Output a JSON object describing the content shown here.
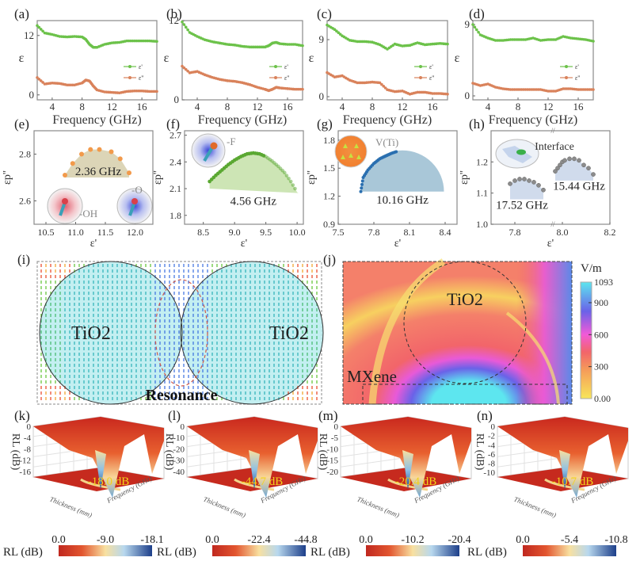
{
  "figure": {
    "panel_labels": [
      "(a)",
      "(b)",
      "(c)",
      "(d)",
      "(e)",
      "(f)",
      "(g)",
      "(h)",
      "(i)",
      "(j)",
      "(k)",
      "(l)",
      "(m)",
      "(n)"
    ]
  },
  "chart_data": [
    {
      "id": "a",
      "type": "line",
      "panel": "(a)",
      "xlabel": "Frequency (GHz)",
      "ylabel": "ε",
      "xlim": [
        2,
        18
      ],
      "ylim": [
        -1,
        15
      ],
      "xticks": [
        4,
        8,
        12,
        16
      ],
      "yticks": [
        0,
        12
      ],
      "legend": {
        "position": "right",
        "entries": [
          "ε'",
          "ε''"
        ]
      },
      "x": [
        2,
        3,
        4,
        5,
        6,
        7,
        8,
        8.5,
        9,
        9.5,
        10,
        11,
        12,
        13,
        14,
        15,
        16,
        17,
        18
      ],
      "series": [
        {
          "name": "ε'",
          "color": "#6cc24a",
          "values": [
            14,
            12.5,
            12.2,
            11.8,
            11.7,
            11.8,
            11.7,
            11.2,
            10.2,
            9.6,
            9.6,
            10.2,
            10.5,
            10.6,
            10.9,
            10.9,
            10.9,
            10.9,
            10.8
          ]
        },
        {
          "name": "ε''",
          "color": "#d9825b",
          "values": [
            3.5,
            2.2,
            2.4,
            2.3,
            2.0,
            2.0,
            2.4,
            3.0,
            2.8,
            1.8,
            1.0,
            0.6,
            0.5,
            0.4,
            0.7,
            0.8,
            0.8,
            0.7,
            0.7
          ]
        }
      ]
    },
    {
      "id": "b",
      "type": "line",
      "panel": "(b)",
      "xlabel": "Frequency (GHz)",
      "ylabel": "ε",
      "xlim": [
        2,
        18
      ],
      "ylim": [
        0,
        12
      ],
      "xticks": [
        4,
        8,
        12,
        16
      ],
      "yticks": [
        0,
        12
      ],
      "legend": {
        "position": "right",
        "entries": [
          "ε'",
          "ε''"
        ]
      },
      "x": [
        2,
        3,
        4,
        5,
        6,
        7,
        8,
        9,
        10,
        11,
        12,
        13,
        13.5,
        14,
        14.5,
        15,
        16,
        17,
        18
      ],
      "series": [
        {
          "name": "ε'",
          "color": "#6cc24a",
          "values": [
            11.8,
            10.2,
            9.6,
            9.1,
            8.8,
            8.6,
            8.4,
            8.3,
            8.1,
            8.0,
            8.0,
            8.0,
            8.2,
            8.6,
            8.7,
            8.5,
            8.4,
            8.4,
            8.2
          ]
        },
        {
          "name": "ε''",
          "color": "#d9825b",
          "values": [
            5.1,
            4.1,
            4.3,
            3.8,
            3.4,
            3.1,
            2.9,
            2.8,
            2.6,
            2.3,
            1.9,
            1.6,
            1.4,
            1.6,
            1.9,
            1.8,
            1.7,
            1.6,
            1.6
          ]
        }
      ]
    },
    {
      "id": "c",
      "type": "line",
      "panel": "(c)",
      "xlabel": "Frequency (GHz)",
      "ylabel": "ε",
      "xlim": [
        2,
        18
      ],
      "ylim": [
        -0.5,
        12
      ],
      "xticks": [
        4,
        8,
        12,
        16
      ],
      "yticks": [
        0,
        9
      ],
      "legend": {
        "position": "right",
        "entries": [
          "ε'",
          "ε''"
        ]
      },
      "x": [
        2,
        3,
        4,
        5,
        6,
        7,
        8,
        9,
        10,
        11,
        12,
        13,
        14,
        15,
        16,
        17,
        18
      ],
      "series": [
        {
          "name": "ε'",
          "color": "#6cc24a",
          "values": [
            11.3,
            10.6,
            9.6,
            8.9,
            8.7,
            8.7,
            8.6,
            8.2,
            7.5,
            8.3,
            8.0,
            8.1,
            8.5,
            8.2,
            8.3,
            8.4,
            8.3
          ]
        },
        {
          "name": "ε''",
          "color": "#d9825b",
          "values": [
            3.8,
            3.1,
            3.3,
            2.6,
            2.2,
            2.2,
            2.3,
            2.2,
            1.1,
            0.8,
            0.9,
            0.4,
            0.7,
            0.7,
            0.5,
            0.5,
            0.4
          ]
        }
      ]
    },
    {
      "id": "d",
      "type": "line",
      "panel": "(d)",
      "xlabel": "Frequency (GHz)",
      "ylabel": "ε",
      "xlim": [
        2,
        18
      ],
      "ylim": [
        -0.5,
        9.5
      ],
      "xticks": [
        4,
        8,
        12,
        16
      ],
      "yticks": [
        0,
        9
      ],
      "legend": {
        "position": "right",
        "entries": [
          "ε'",
          "ε''"
        ]
      },
      "x": [
        2,
        3,
        4,
        5,
        6,
        7,
        8,
        9,
        10,
        11,
        12,
        13,
        14,
        15,
        16,
        17,
        18
      ],
      "series": [
        {
          "name": "ε'",
          "color": "#6cc24a",
          "values": [
            9.0,
            7.7,
            7.3,
            7.0,
            7.0,
            7.1,
            7.1,
            7.1,
            7.3,
            7.0,
            7.1,
            7.1,
            7.5,
            7.3,
            7.2,
            7.1,
            6.9
          ]
        },
        {
          "name": "ε''",
          "color": "#d9825b",
          "values": [
            1.6,
            1.3,
            1.5,
            1.1,
            0.9,
            0.8,
            0.8,
            0.8,
            0.8,
            0.8,
            0.6,
            0.6,
            0.9,
            0.9,
            0.8,
            0.8,
            0.8
          ]
        }
      ]
    },
    {
      "id": "e",
      "type": "scatter",
      "panel": "(e)",
      "xlabel": "ε'",
      "ylabel": "εp''",
      "xlim": [
        10.3,
        12.3
      ],
      "ylim": [
        2.5,
        2.9
      ],
      "xticks": [
        10.5,
        11.0,
        11.5,
        12.0
      ],
      "yticks": [
        2.6,
        2.8
      ],
      "annotation": "2.36 GHz",
      "fill_color": "#d6ceaa",
      "point_color": "#f29a4b",
      "x": [
        10.82,
        10.95,
        11.1,
        11.25,
        11.4,
        11.6,
        11.75,
        11.9
      ],
      "y": [
        2.71,
        2.76,
        2.8,
        2.82,
        2.82,
        2.81,
        2.78,
        2.72
      ],
      "insets": [
        {
          "label": "-OH"
        },
        {
          "label": "-O"
        }
      ]
    },
    {
      "id": "f",
      "type": "scatter",
      "panel": "(f)",
      "xlabel": "ε'",
      "ylabel": "εp''",
      "xlim": [
        8.2,
        10.1
      ],
      "ylim": [
        1.7,
        2.75
      ],
      "xticks": [
        8.5,
        9.0,
        9.5,
        10.0
      ],
      "yticks": [
        1.8,
        2.1,
        2.4,
        2.7
      ],
      "annotation": "4.56 GHz",
      "fill_color": "#c8e2ad",
      "point_color": "#5aa832",
      "x": [
        8.6,
        8.7,
        8.8,
        8.9,
        9.0,
        9.1,
        9.2,
        9.3,
        9.4,
        9.5,
        9.6,
        9.7,
        9.8,
        9.9,
        10.0
      ],
      "y": [
        2.18,
        2.25,
        2.31,
        2.37,
        2.42,
        2.46,
        2.49,
        2.5,
        2.49,
        2.46,
        2.41,
        2.35,
        2.28,
        2.18,
        2.06
      ],
      "insets": [
        {
          "label": "-F"
        }
      ]
    },
    {
      "id": "g",
      "type": "scatter",
      "panel": "(g)",
      "xlabel": "ε'",
      "ylabel": "εp''",
      "xlim": [
        7.5,
        8.5
      ],
      "ylim": [
        0.9,
        1.9
      ],
      "xticks": [
        7.5,
        7.8,
        8.1,
        8.4
      ],
      "yticks": [
        0.9,
        1.2,
        1.5,
        1.8
      ],
      "annotation": "10.16 GHz",
      "fill_color": "#a9c7d8",
      "point_color": "#2a6fb0",
      "x": [
        7.69,
        7.71,
        7.75,
        7.8,
        7.85,
        7.9,
        7.95,
        8.0
      ],
      "y": [
        1.25,
        1.4,
        1.48,
        1.55,
        1.6,
        1.63,
        1.66,
        1.68
      ],
      "insets": [
        {
          "label": "V(Ti)"
        }
      ]
    },
    {
      "id": "h",
      "type": "scatter",
      "panel": "(h)",
      "xlabel": "ε'",
      "ylabel": "εp''",
      "xlim": [
        7.7,
        8.2
      ],
      "ylim": [
        1.0,
        1.3
      ],
      "xticks": [
        7.8,
        8.0,
        8.2
      ],
      "yticks": [
        1.0,
        1.1,
        1.2
      ],
      "axis_break": true,
      "inset_label": "Interface",
      "fill_color": "#cbd7ea",
      "point_color": "#9a9a9a",
      "series": [
        {
          "name": "17.52 GHz",
          "x": [
            7.78,
            7.8,
            7.82,
            7.84,
            7.86,
            7.88,
            7.9,
            7.92
          ],
          "y": [
            1.13,
            1.14,
            1.145,
            1.145,
            1.14,
            1.135,
            1.125,
            1.11
          ]
        },
        {
          "name": "15.44 GHz",
          "x": [
            7.97,
            7.98,
            7.99,
            8.0,
            8.01,
            8.03,
            8.05,
            8.07,
            8.09,
            8.11,
            8.13
          ],
          "y": [
            1.17,
            1.18,
            1.19,
            1.2,
            1.205,
            1.21,
            1.21,
            1.205,
            1.19,
            1.18,
            1.16
          ]
        }
      ]
    },
    {
      "id": "i",
      "type": "heatmap",
      "panel": "(i)",
      "title": "",
      "labels": [
        "TiO2",
        "TiO2",
        "Resonance"
      ],
      "description": "Electric field vector distribution between two TiO2 spheres"
    },
    {
      "id": "j",
      "type": "heatmap",
      "panel": "(j)",
      "labels": [
        "TiO2",
        "MXene"
      ],
      "colorbar": {
        "unit": "V/m",
        "min": 0.0,
        "max": 1093,
        "ticks": [
          "1093",
          "900",
          "600",
          "300",
          "0.00"
        ]
      }
    },
    {
      "id": "k",
      "type": "surface3d",
      "panel": "(k)",
      "zlabel": "RL (dB)",
      "xlabel": "Thickness (mm)",
      "ylabel": "Frequency (GHz)",
      "zticks": [
        0,
        -4,
        -8,
        -12,
        -16
      ],
      "annotation": "-18.0 dB",
      "colorbar": {
        "label": "RL (dB)",
        "ticks": [
          "0.0",
          "-9.0",
          "-18.1"
        ],
        "min": 0.0,
        "max": -18.1
      }
    },
    {
      "id": "l",
      "type": "surface3d",
      "panel": "(l)",
      "zlabel": "RL (dB)",
      "xlabel": "Thickness (mm)",
      "ylabel": "Frequency (GHz)",
      "zticks": [
        0,
        -10,
        -20,
        -30,
        -40
      ],
      "annotation": "-44.7 dB",
      "colorbar": {
        "label": "RL (dB)",
        "ticks": [
          "0.0",
          "-22.4",
          "-44.8"
        ],
        "min": 0.0,
        "max": -44.8
      }
    },
    {
      "id": "m",
      "type": "surface3d",
      "panel": "(m)",
      "zlabel": "RL (dB)",
      "xlabel": "Thickness (mm)",
      "ylabel": "Frequency (GHz)",
      "zticks": [
        0,
        -5,
        -10,
        -15,
        -20
      ],
      "annotation": "-20.4 dB",
      "colorbar": {
        "label": "RL (dB)",
        "ticks": [
          "0.0",
          "-10.2",
          "-20.4"
        ],
        "min": 0.0,
        "max": -20.4
      }
    },
    {
      "id": "n",
      "type": "surface3d",
      "panel": "(n)",
      "zlabel": "RL (dB)",
      "xlabel": "Thickness (mm)",
      "ylabel": "Frequency (GHz)",
      "zticks": [
        0,
        -2,
        -4,
        -6,
        -8,
        -10
      ],
      "annotation": "-10.7 dB",
      "colorbar": {
        "label": "RL (dB)",
        "ticks": [
          "0.0",
          "-5.4",
          "-10.8"
        ],
        "min": 0.0,
        "max": -10.8
      }
    }
  ]
}
